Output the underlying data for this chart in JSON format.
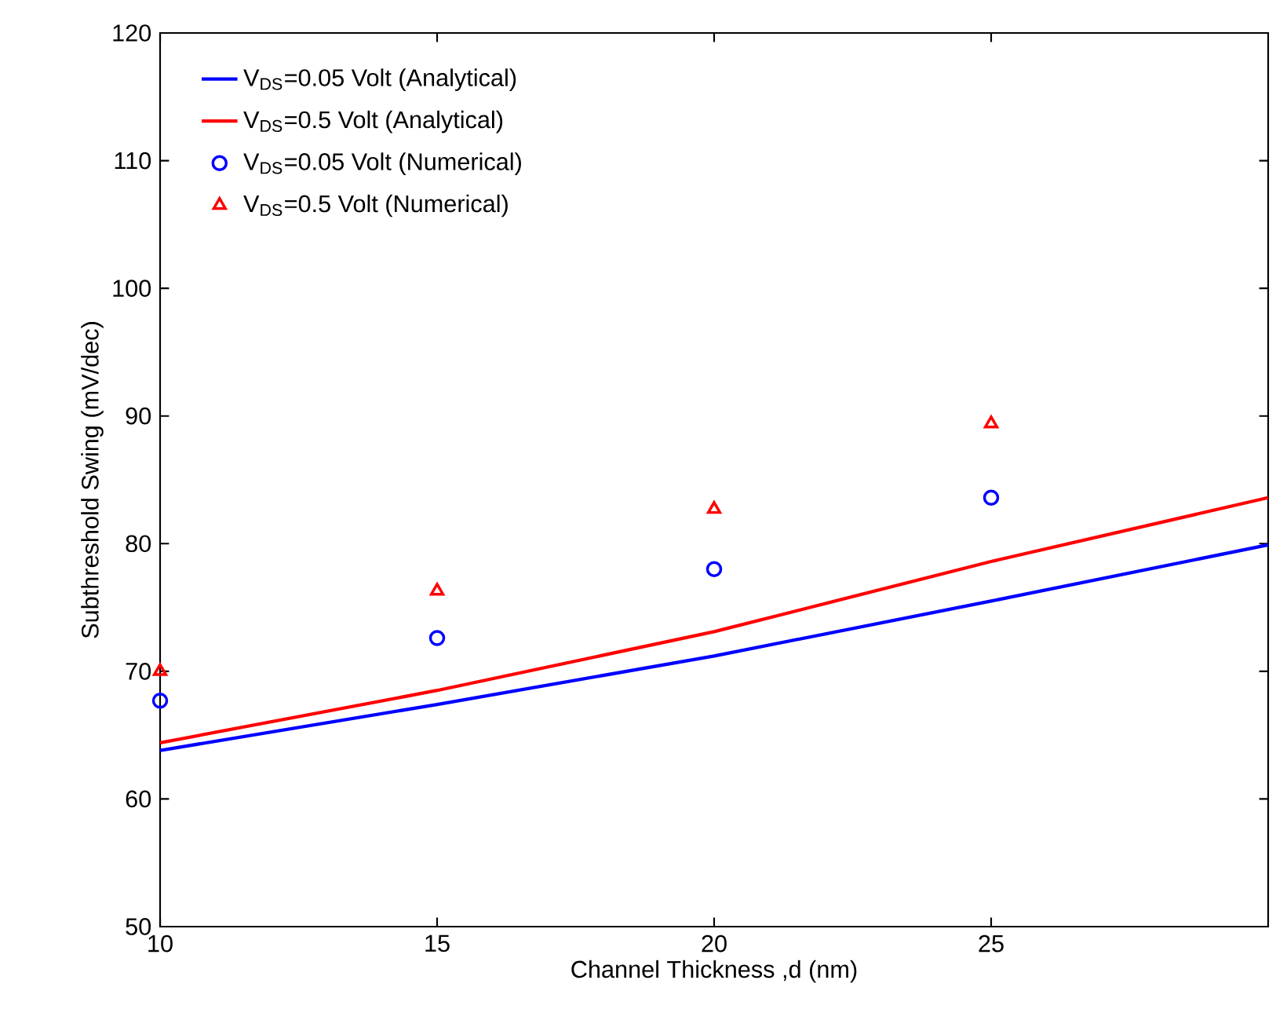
{
  "chart_data": {
    "type": "line",
    "xlabel": "Channel Thickness ,d (nm)",
    "ylabel": "Subthreshold Swing (mV/dec)",
    "xlim": [
      10,
      30
    ],
    "xticks": [
      10,
      15,
      20,
      25
    ],
    "ylim": [
      50,
      120
    ],
    "yticks": [
      50,
      60,
      70,
      80,
      90,
      100,
      110,
      120
    ],
    "legend": "top left",
    "series": [
      {
        "name": "V$_{DS}$=0.05 Volt (Analytical)",
        "color": "#0000ff",
        "x": [
          10,
          15,
          20,
          25,
          30
        ],
        "values": [
          63.8,
          67.4,
          71.2,
          75.5,
          79.9
        ]
      },
      {
        "name": "V$_{DS}$=0.5 Volt (Analytical)",
        "color": "#ff0000",
        "x": [
          10,
          15,
          20,
          25,
          30
        ],
        "values": [
          64.4,
          68.5,
          73.1,
          78.6,
          83.6
        ]
      },
      {
        "name": "V$_{DS}$=0.05 Volt (Numerical)",
        "type": "scatter",
        "marker": "circle",
        "color": "#0000ff",
        "x": [
          10,
          15,
          20,
          25
        ],
        "values": [
          67.7,
          72.6,
          78.0,
          83.6
        ]
      },
      {
        "name": "V$_{DS}$=0.5 Volt (Numerical)",
        "type": "scatter",
        "marker": "triangle",
        "color": "#ff0000",
        "x": [
          10,
          15,
          20,
          25
        ],
        "values": [
          70.0,
          76.3,
          82.7,
          89.4
        ]
      }
    ]
  }
}
